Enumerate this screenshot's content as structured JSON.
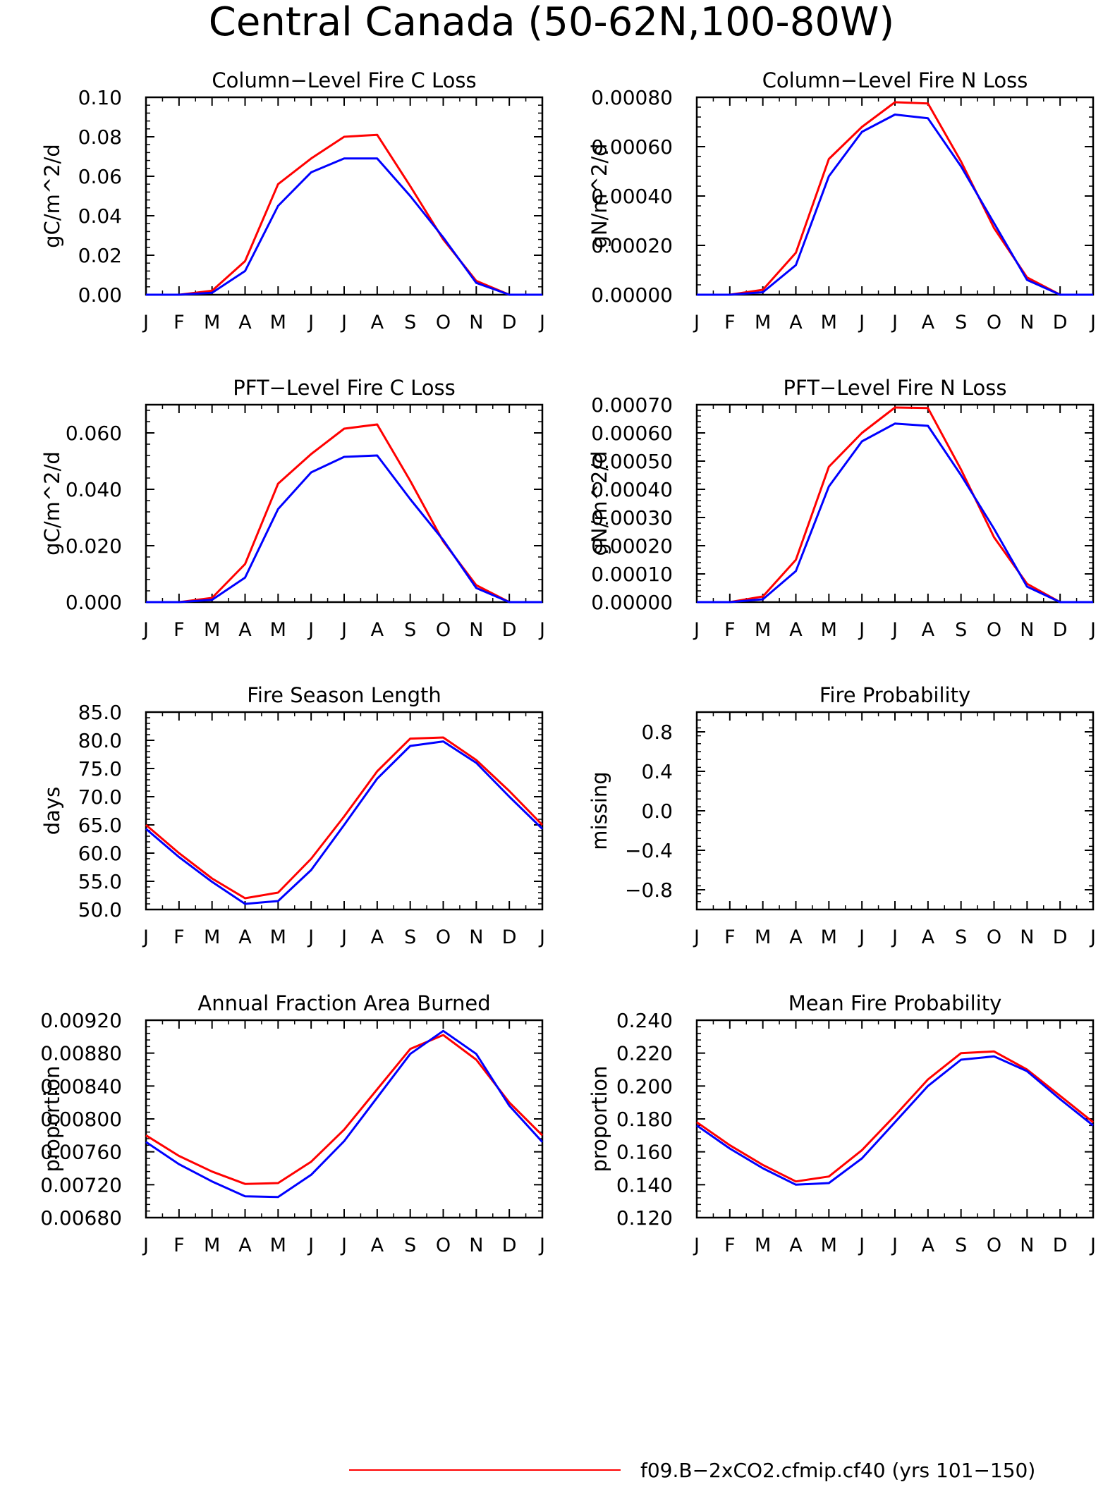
{
  "page_title": "Central Canada (50-62N,100-80W)",
  "legend": [
    {
      "label": "f09.B-2xCO2.cfmip.cf40 (yrs 101-150)",
      "color": "#ff0000"
    }
  ],
  "series_colors": [
    "#ff0000",
    "#0000ff"
  ],
  "chart_data": [
    {
      "type": "line",
      "title": "Column-Level Fire C Loss",
      "ylabel": "gC/m^2/d",
      "x": [
        "J",
        "F",
        "M",
        "A",
        "M",
        "J",
        "J",
        "A",
        "S",
        "O",
        "N",
        "D",
        "J"
      ],
      "ylim": [
        0,
        0.1
      ],
      "yticks": [
        "0.00",
        "0.02",
        "0.04",
        "0.06",
        "0.08",
        "0.10"
      ],
      "series": [
        {
          "color": "#ff0000",
          "values": [
            0,
            0,
            0.002,
            0.017,
            0.056,
            0.069,
            0.08,
            0.081,
            0.055,
            0.028,
            0.007,
            0,
            0
          ]
        },
        {
          "color": "#0000ff",
          "values": [
            0,
            0,
            0.001,
            0.012,
            0.045,
            0.062,
            0.069,
            0.069,
            0.05,
            0.029,
            0.006,
            0,
            0
          ]
        }
      ]
    },
    {
      "type": "line",
      "title": "Column-Level Fire N Loss",
      "ylabel": "gN/m^2/d",
      "x": [
        "J",
        "F",
        "M",
        "A",
        "M",
        "J",
        "J",
        "A",
        "S",
        "O",
        "N",
        "D",
        "J"
      ],
      "ylim": [
        0,
        0.0008
      ],
      "yticks": [
        "0.00000",
        "0.00020",
        "0.00040",
        "0.00060",
        "0.00080"
      ],
      "series": [
        {
          "color": "#ff0000",
          "values": [
            0,
            0,
            2e-05,
            0.00017,
            0.00055,
            0.00068,
            0.00078,
            0.000775,
            0.00054,
            0.00027,
            7e-05,
            0,
            0
          ]
        },
        {
          "color": "#0000ff",
          "values": [
            0,
            0,
            1e-05,
            0.00012,
            0.00048,
            0.00066,
            0.00073,
            0.000715,
            0.00052,
            0.00029,
            6e-05,
            0,
            0
          ]
        }
      ]
    },
    {
      "type": "line",
      "title": "PFT-Level Fire C Loss",
      "ylabel": "gC/m^2/d",
      "x": [
        "J",
        "F",
        "M",
        "A",
        "M",
        "J",
        "J",
        "A",
        "S",
        "O",
        "N",
        "D",
        "J"
      ],
      "ylim": [
        0,
        0.07
      ],
      "yticks": [
        "0.000",
        "0.020",
        "0.040",
        "0.060"
      ],
      "ytickvalues": [
        0,
        0.02,
        0.04,
        0.06
      ],
      "series": [
        {
          "color": "#ff0000",
          "values": [
            0,
            0,
            0.0015,
            0.0135,
            0.042,
            0.0525,
            0.0615,
            0.063,
            0.043,
            0.0215,
            0.006,
            0,
            0
          ]
        },
        {
          "color": "#0000ff",
          "values": [
            0,
            0,
            0.0008,
            0.0087,
            0.033,
            0.046,
            0.0515,
            0.052,
            0.0365,
            0.022,
            0.005,
            0,
            0
          ]
        }
      ]
    },
    {
      "type": "line",
      "title": "PFT-Level Fire N Loss",
      "ylabel": "gN/m^2/d",
      "x": [
        "J",
        "F",
        "M",
        "A",
        "M",
        "J",
        "J",
        "A",
        "S",
        "O",
        "N",
        "D",
        "J"
      ],
      "ylim": [
        0,
        0.0007
      ],
      "yticks": [
        "0.00000",
        "0.00010",
        "0.00020",
        "0.00030",
        "0.00040",
        "0.00050",
        "0.00060",
        "0.00070"
      ],
      "series": [
        {
          "color": "#ff0000",
          "values": [
            0,
            0,
            2e-05,
            0.00015,
            0.00048,
            0.0006,
            0.00069,
            0.000688,
            0.00047,
            0.00023,
            6.5e-05,
            0,
            0
          ]
        },
        {
          "color": "#0000ff",
          "values": [
            0,
            0,
            1e-05,
            0.00011,
            0.00041,
            0.00057,
            0.000633,
            0.000625,
            0.00045,
            0.00026,
            5.5e-05,
            0,
            0
          ]
        }
      ]
    },
    {
      "type": "line",
      "title": "Fire Season Length",
      "ylabel": "days",
      "x": [
        "J",
        "F",
        "M",
        "A",
        "M",
        "J",
        "J",
        "A",
        "S",
        "O",
        "N",
        "D",
        "J"
      ],
      "ylim": [
        50,
        85
      ],
      "yticks": [
        "50.0",
        "55.0",
        "60.0",
        "65.0",
        "70.0",
        "75.0",
        "80.0",
        "85.0"
      ],
      "series": [
        {
          "color": "#ff0000",
          "values": [
            65.0,
            60.0,
            55.5,
            52.0,
            53.0,
            59.0,
            66.5,
            74.5,
            80.3,
            80.5,
            76.5,
            71.0,
            65.0
          ]
        },
        {
          "color": "#0000ff",
          "values": [
            64.3,
            59.3,
            54.9,
            51.0,
            51.5,
            57.0,
            65.0,
            73.2,
            79.0,
            79.8,
            76.0,
            70.0,
            64.3
          ]
        }
      ]
    },
    {
      "type": "line",
      "title": "Fire Probability",
      "ylabel": "missing",
      "x": [
        "J",
        "F",
        "M",
        "A",
        "M",
        "J",
        "J",
        "A",
        "S",
        "O",
        "N",
        "D",
        "J"
      ],
      "ylim": [
        -1,
        1
      ],
      "yticks": [
        "-0.8",
        "-0.4",
        "0.0",
        "0.4",
        "0.8"
      ],
      "ytickvalues": [
        -0.8,
        -0.4,
        0.0,
        0.4,
        0.8
      ],
      "series": []
    },
    {
      "type": "line",
      "title": "Annual Fraction Area Burned",
      "ylabel": "proportion",
      "x": [
        "J",
        "F",
        "M",
        "A",
        "M",
        "J",
        "J",
        "A",
        "S",
        "O",
        "N",
        "D",
        "J"
      ],
      "ylim": [
        0.0068,
        0.0092
      ],
      "yticks": [
        "0.00680",
        "0.00720",
        "0.00760",
        "0.00800",
        "0.00840",
        "0.00880",
        "0.00920"
      ],
      "series": [
        {
          "color": "#ff0000",
          "values": [
            0.0078,
            0.00755,
            0.00736,
            0.00721,
            0.00722,
            0.00748,
            0.00787,
            0.00836,
            0.00885,
            0.00902,
            0.00872,
            0.0082,
            0.0078
          ]
        },
        {
          "color": "#0000ff",
          "values": [
            0.00772,
            0.00745,
            0.00724,
            0.00706,
            0.00705,
            0.00732,
            0.00773,
            0.00826,
            0.00879,
            0.00907,
            0.00879,
            0.00816,
            0.00772
          ]
        }
      ]
    },
    {
      "type": "line",
      "title": "Mean Fire Probability",
      "ylabel": "proportion",
      "x": [
        "J",
        "F",
        "M",
        "A",
        "M",
        "J",
        "J",
        "A",
        "S",
        "O",
        "N",
        "D",
        "J"
      ],
      "ylim": [
        0.12,
        0.24
      ],
      "yticks": [
        "0.120",
        "0.140",
        "0.160",
        "0.180",
        "0.200",
        "0.220",
        "0.240"
      ],
      "series": [
        {
          "color": "#ff0000",
          "values": [
            0.178,
            0.164,
            0.152,
            0.142,
            0.145,
            0.161,
            0.182,
            0.204,
            0.22,
            0.221,
            0.21,
            0.194,
            0.178
          ]
        },
        {
          "color": "#0000ff",
          "values": [
            0.176,
            0.162,
            0.15,
            0.14,
            0.141,
            0.156,
            0.178,
            0.2,
            0.216,
            0.218,
            0.209,
            0.192,
            0.176
          ]
        }
      ]
    }
  ]
}
